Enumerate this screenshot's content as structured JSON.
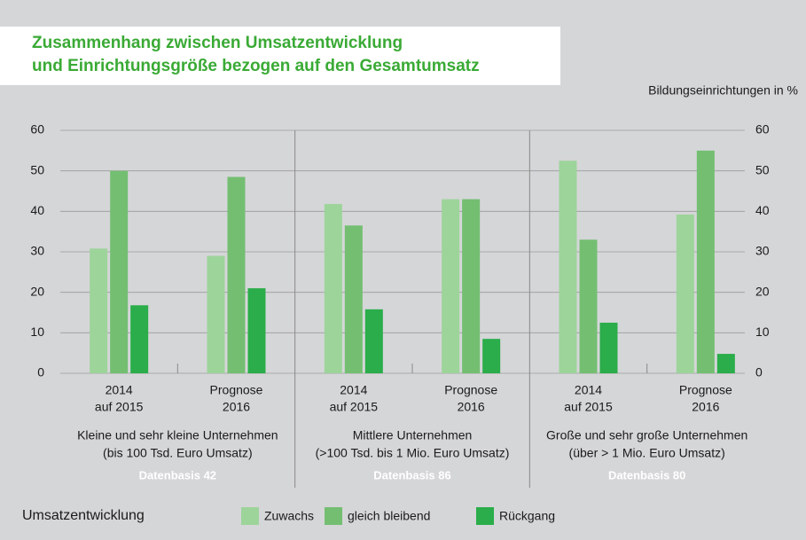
{
  "chart_data": {
    "type": "bar",
    "title": [
      "Zusammenhang zwischen Umsatzentwicklung",
      "und Einrichtungsgröße bezogen auf den Gesamtumsatz"
    ],
    "unit_label": "Bildungseinrichtungen in %",
    "categories": [
      [
        "2014",
        "auf 2015"
      ],
      [
        "Prognose",
        "2016"
      ],
      [
        "2014",
        "auf 2015"
      ],
      [
        "Prognose",
        "2016"
      ],
      [
        "2014",
        "auf 2015"
      ],
      [
        "Prognose",
        "2016"
      ]
    ],
    "groups": [
      {
        "label": [
          "Kleine und sehr kleine Unternehmen",
          "(bis 100 Tsd. Euro Umsatz)"
        ],
        "basis": "Datenbasis 42"
      },
      {
        "label": [
          "Mittlere Unternehmen",
          "(>100 Tsd. bis 1 Mio. Euro Umsatz)"
        ],
        "basis": "Datenbasis 86"
      },
      {
        "label": [
          "Große und sehr große Unternehmen",
          "(über > 1 Mio. Euro Umsatz)"
        ],
        "basis": "Datenbasis 80"
      }
    ],
    "legend_title": "Umsatzentwicklung",
    "series": [
      {
        "name": "Zuwachs",
        "color": "#9dd49a",
        "values": [
          30.8,
          29,
          41.8,
          43,
          52.5,
          39.2
        ]
      },
      {
        "name": "gleich bleibend",
        "color": "#74be72",
        "values": [
          50,
          48.5,
          36.5,
          43,
          33,
          55
        ]
      },
      {
        "name": "Rückgang",
        "color": "#2aad4a",
        "values": [
          16.8,
          21,
          15.8,
          8.5,
          12.5,
          4.8
        ]
      }
    ],
    "ylim": [
      0,
      60
    ],
    "yticks": [
      0,
      10,
      20,
      30,
      40,
      50,
      60
    ],
    "y2lim": [
      0,
      60
    ],
    "y2ticks": [
      0,
      10,
      20,
      30,
      40,
      50,
      60
    ],
    "grid": true
  }
}
